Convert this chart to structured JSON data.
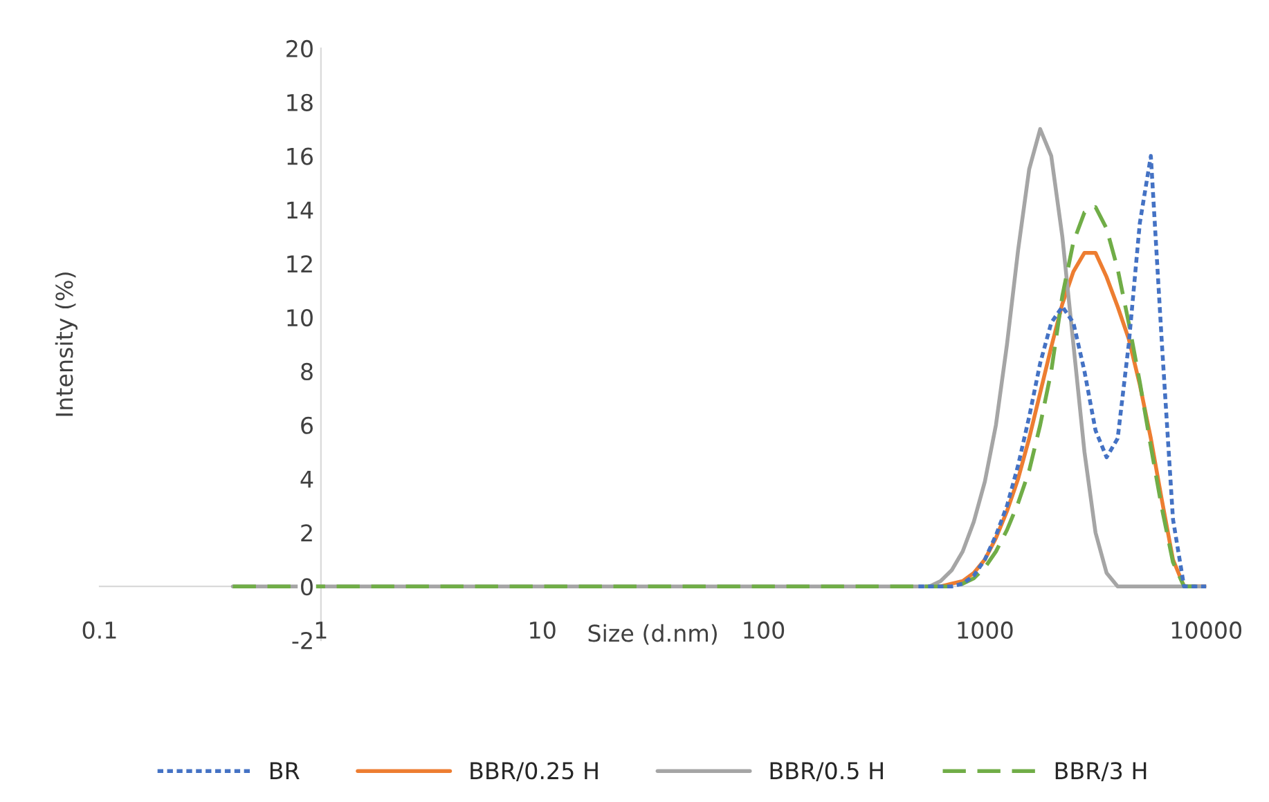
{
  "chart_data": {
    "type": "line",
    "xlabel": "Size (d.nm)",
    "ylabel": "Intensity (%)",
    "log": "x",
    "xlim": [
      0.1,
      10000
    ],
    "xticks": [
      0.1,
      1,
      10,
      100,
      1000,
      10000
    ],
    "ylim": [
      -2,
      20
    ],
    "yticks": [
      -2,
      0,
      2,
      4,
      6,
      8,
      10,
      12,
      14,
      16,
      18,
      20
    ],
    "grid": false,
    "legend": "bottom",
    "marker": "none",
    "x": [
      0.4,
      501,
      562,
      631,
      708,
      794,
      891,
      1000,
      1122,
      1259,
      1413,
      1585,
      1778,
      1995,
      2239,
      2512,
      2818,
      3162,
      3548,
      3981,
      4467,
      5012,
      5623,
      6310,
      7079,
      7943,
      8913,
      10000
    ],
    "series": [
      {
        "name": "BR",
        "color": "#4472c4",
        "line_style": "dotted",
        "values": [
          null,
          0,
          0,
          0,
          0,
          0.1,
          0.4,
          1.0,
          1.9,
          3.0,
          4.5,
          6.3,
          8.3,
          9.8,
          10.4,
          9.8,
          8.0,
          5.8,
          4.8,
          5.5,
          9.0,
          13.5,
          16.0,
          9.0,
          2.5,
          0,
          0,
          0
        ]
      },
      {
        "name": "BBR/0.25 H",
        "color": "#ed7d31",
        "line_style": "solid",
        "values": [
          null,
          null,
          0,
          0,
          0.1,
          0.2,
          0.5,
          1.0,
          1.8,
          2.8,
          4.0,
          5.5,
          7.2,
          8.9,
          10.5,
          11.7,
          12.4,
          12.4,
          11.5,
          10.4,
          9.2,
          7.5,
          5.5,
          3.2,
          1.0,
          0,
          0,
          0
        ]
      },
      {
        "name": "BBR/0.5 H",
        "color": "#a5a5a5",
        "line_style": "solid",
        "values": [
          0,
          0,
          0,
          0.2,
          0.6,
          1.3,
          2.4,
          3.9,
          6.0,
          9.0,
          12.5,
          15.5,
          17.0,
          16.0,
          13.0,
          9.0,
          5.0,
          2.0,
          0.5,
          0,
          0,
          0,
          0,
          0,
          0,
          0,
          0,
          0
        ]
      },
      {
        "name": "BBR/3 H",
        "color": "#70ad47",
        "line_style": "dashed",
        "values": [
          0,
          0,
          0,
          0,
          0,
          0.1,
          0.3,
          0.7,
          1.3,
          2.1,
          3.1,
          4.3,
          6.0,
          8.0,
          10.8,
          12.8,
          13.9,
          14.1,
          13.3,
          11.8,
          9.8,
          7.6,
          5.2,
          2.9,
          0.9,
          0,
          0,
          0
        ]
      }
    ]
  }
}
